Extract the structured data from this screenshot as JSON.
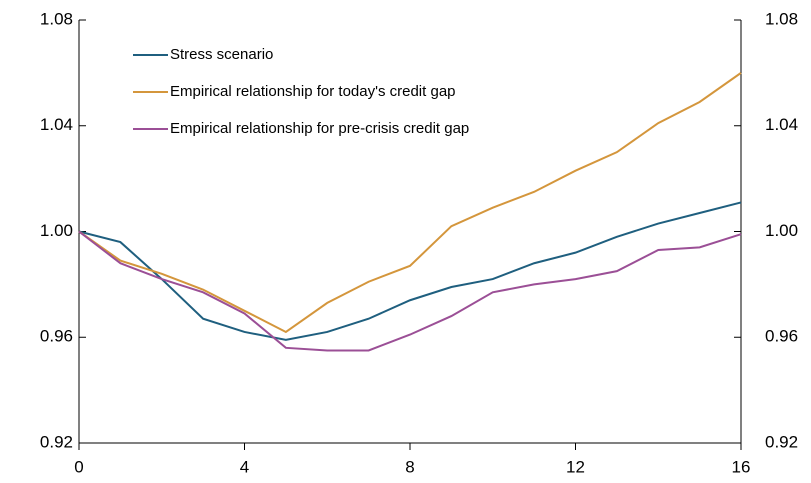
{
  "chart_data": {
    "type": "line",
    "x": [
      0,
      1,
      2,
      3,
      4,
      5,
      6,
      7,
      8,
      9,
      10,
      11,
      12,
      13,
      14,
      15,
      16
    ],
    "series": [
      {
        "name": "Stress scenario",
        "color": "#1f5f7f",
        "values": [
          1.0,
          0.996,
          0.982,
          0.967,
          0.962,
          0.959,
          0.962,
          0.967,
          0.974,
          0.979,
          0.982,
          0.988,
          0.992,
          0.998,
          1.003,
          1.007,
          1.011
        ]
      },
      {
        "name": "Empirical relationship for today's credit gap",
        "color": "#d4963c",
        "values": [
          1.0,
          0.989,
          0.984,
          0.978,
          0.97,
          0.962,
          0.973,
          0.981,
          0.987,
          1.002,
          1.009,
          1.015,
          1.023,
          1.03,
          1.041,
          1.049,
          1.06
        ]
      },
      {
        "name": "Empirical relationship for pre-crisis credit gap",
        "color": "#9b4f96",
        "values": [
          1.0,
          0.988,
          0.982,
          0.977,
          0.969,
          0.956,
          0.955,
          0.955,
          0.961,
          0.968,
          0.977,
          0.98,
          0.982,
          0.985,
          0.993,
          0.994,
          0.999
        ]
      }
    ],
    "xlim": [
      0,
      16
    ],
    "xticks": [
      0,
      4,
      8,
      12,
      16
    ],
    "ylim": [
      0.92,
      1.08
    ],
    "yticks": [
      0.92,
      0.96,
      {
        "value": 1,
        "label": "1.00"
      },
      1.04,
      1.08
    ],
    "y2lim": [
      0.92,
      1.08
    ],
    "y2ticks": [
      0.92,
      0.96,
      {
        "value": 1,
        "label": "1.00"
      },
      1.04,
      1.08
    ],
    "grid": false
  }
}
